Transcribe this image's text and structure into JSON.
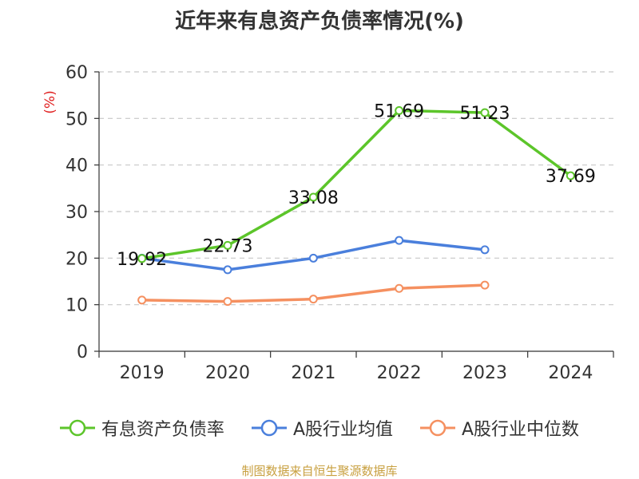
{
  "chart_data": {
    "type": "line",
    "title": "近年来有息资产负债率情况(%)",
    "ylabel": "(%)",
    "xlabel": "",
    "categories": [
      "2019",
      "2020",
      "2021",
      "2022",
      "2023",
      "2024"
    ],
    "ylim": [
      0,
      60
    ],
    "yticks": [
      0,
      10,
      20,
      30,
      40,
      50,
      60
    ],
    "grid": true,
    "legend_position": "bottom",
    "series": [
      {
        "name": "有息资产负债率",
        "color": "#5cc52a",
        "values": [
          19.92,
          22.73,
          33.08,
          51.69,
          51.23,
          37.69
        ],
        "data_labels": [
          "19.92",
          "22.73",
          "33.08",
          "51.69",
          "51.23",
          "37.69"
        ]
      },
      {
        "name": "A股行业均值",
        "color": "#4a7fdc",
        "values": [
          20.0,
          17.5,
          20.0,
          23.8,
          21.8,
          null
        ]
      },
      {
        "name": "A股行业中位数",
        "color": "#f59060",
        "values": [
          11.0,
          10.7,
          11.2,
          13.5,
          14.2,
          null
        ]
      }
    ]
  },
  "source": "制图数据来自恒生聚源数据库"
}
